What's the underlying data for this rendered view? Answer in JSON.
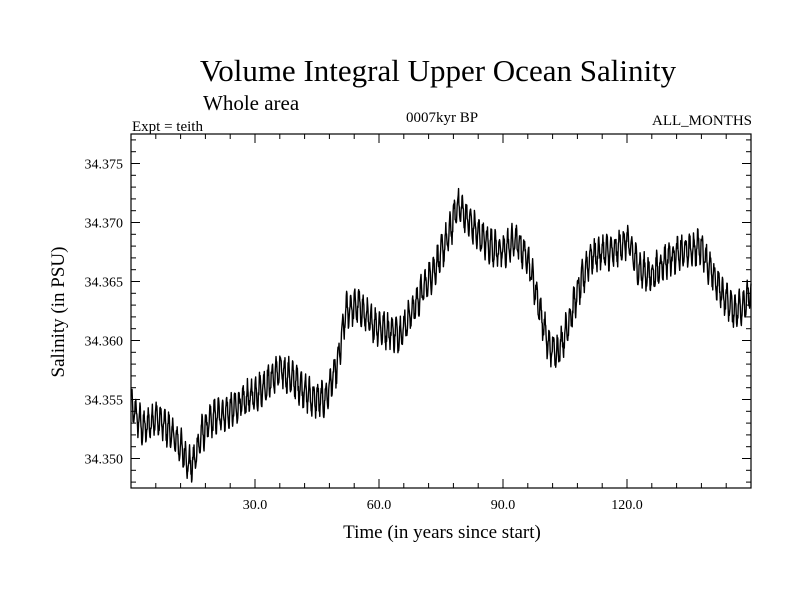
{
  "chart_data": {
    "type": "line",
    "title": "Volume Integral Upper Ocean Salinity",
    "subtitle": "Whole area",
    "annotations": {
      "experiment": "Expt = teith",
      "period": "0007kyr BP",
      "months": "ALL_MONTHS"
    },
    "xlabel": "Time (in years since start)",
    "ylabel": "Salinity (in PSU)",
    "xlim": [
      0,
      150
    ],
    "ylim": [
      34.3475,
      34.3775
    ],
    "xticks": [
      30,
      60,
      90,
      120
    ],
    "xtick_labels": [
      "30.0",
      "60.0",
      "90.0",
      "120.0"
    ],
    "yticks": [
      34.35,
      34.355,
      34.36,
      34.365,
      34.37,
      34.375
    ],
    "ytick_labels": [
      "34.350",
      "34.355",
      "34.360",
      "34.365",
      "34.370",
      "34.375"
    ],
    "grid": false,
    "series": [
      {
        "name": "Salinity",
        "color": "#000000",
        "trend": {
          "x": [
            0,
            3,
            6,
            9,
            12,
            14,
            15,
            17,
            20,
            24,
            28,
            32,
            36,
            40,
            44,
            47,
            50,
            52,
            55,
            58,
            61,
            65,
            68,
            71,
            74,
            77,
            79,
            81,
            84,
            87,
            90,
            93,
            96,
            99,
            101,
            103,
            105,
            108,
            111,
            114,
            117,
            120,
            123,
            126,
            130,
            134,
            138,
            140,
            143,
            146,
            148,
            150
          ],
          "y": [
            34.3545,
            34.3525,
            34.3535,
            34.3525,
            34.351,
            34.3495,
            34.3495,
            34.352,
            34.3535,
            34.354,
            34.355,
            34.356,
            34.3575,
            34.3565,
            34.355,
            34.355,
            34.358,
            34.3625,
            34.363,
            34.3615,
            34.361,
            34.3605,
            34.3625,
            34.3645,
            34.3665,
            34.369,
            34.3715,
            34.3705,
            34.369,
            34.368,
            34.3675,
            34.3685,
            34.367,
            34.3625,
            34.3595,
            34.359,
            34.3605,
            34.364,
            34.367,
            34.3675,
            34.3675,
            34.3685,
            34.366,
            34.3655,
            34.367,
            34.3675,
            34.368,
            34.366,
            34.364,
            34.3625,
            34.363,
            34.364
          ]
        },
        "monthly_amplitude": 0.0012
      }
    ]
  }
}
